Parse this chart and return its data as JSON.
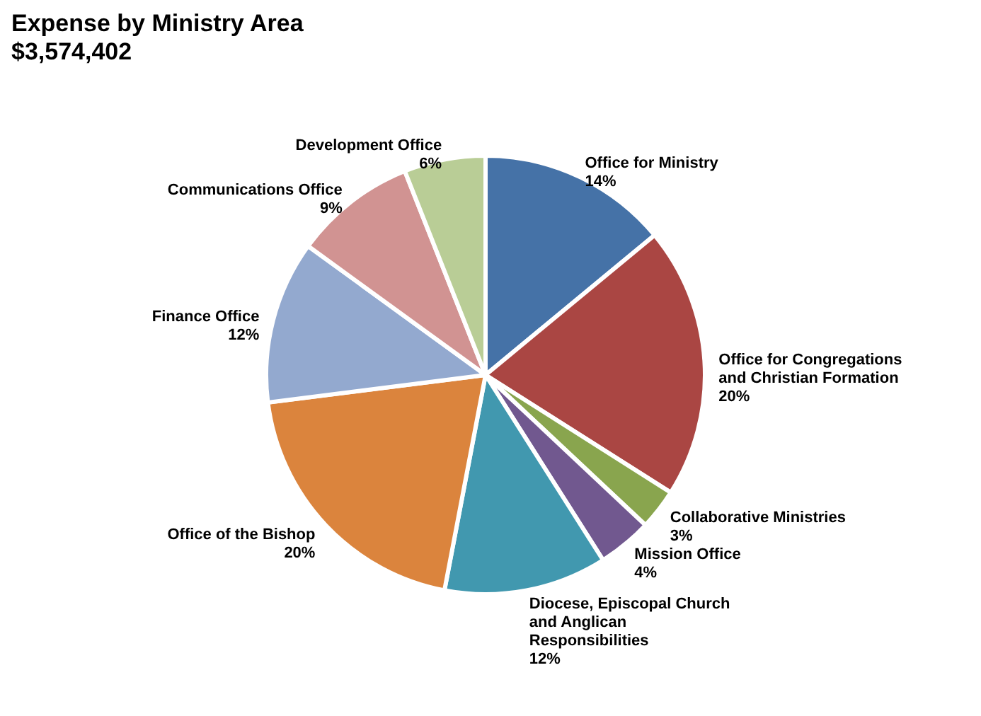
{
  "chart_data": {
    "type": "pie",
    "title": "Expense by Ministry Area",
    "subtitle": "$3,574,402",
    "categories": [
      "Office for Ministry",
      "Office for Congregations and Christian Formation",
      "Collaborative Ministries",
      "Mission Office",
      "Diocese, Episcopal Church and Anglican Responsibilities",
      "Office of the Bishop",
      "Finance Office",
      "Communications Office",
      "Development Office"
    ],
    "values": [
      14,
      20,
      3,
      4,
      12,
      20,
      12,
      9,
      6
    ],
    "colors": [
      "#4572a7",
      "#aa4643",
      "#89a54e",
      "#71588f",
      "#4198af",
      "#db843d",
      "#93a9cf",
      "#d19392",
      "#b9cd96"
    ],
    "value_labels": [
      "14%",
      "20%",
      "3%",
      "4%",
      "12%",
      "20%",
      "12%",
      "9%",
      "6%"
    ],
    "legend": false
  }
}
